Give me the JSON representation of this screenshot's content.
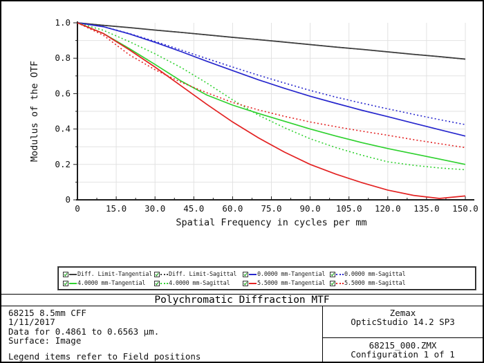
{
  "window": {
    "title": "Polychromatic Diffraction MTF"
  },
  "chart_data": {
    "type": "line",
    "title": "Polychromatic Diffraction MTF",
    "xlabel": "Spatial Frequency in cycles per mm",
    "ylabel": "Modulus of the OTF",
    "xlim": [
      0,
      150
    ],
    "ylim": [
      0,
      1.0
    ],
    "grid": true,
    "legend_position": "bottom-box",
    "x_ticks": {
      "values": [
        0,
        15,
        30,
        45,
        60,
        75,
        90,
        105,
        120,
        135,
        150
      ],
      "labels": [
        "0",
        "15.0",
        "30.0",
        "45.0",
        "60.0",
        "75.0",
        "90.0",
        "105.0",
        "120.0",
        "135.0",
        "150.0"
      ]
    },
    "y_ticks": {
      "values": [
        0,
        0.2,
        0.4,
        0.6,
        0.8,
        1.0
      ],
      "labels": [
        "0",
        "0.2",
        "0.4",
        "0.6",
        "0.8",
        "1.0"
      ]
    },
    "x": [
      0,
      10,
      20,
      30,
      40,
      50,
      60,
      70,
      80,
      90,
      100,
      110,
      120,
      130,
      140,
      150
    ],
    "series": [
      {
        "name": "Diff. Limit-Tangential",
        "color": "#3c3c3c",
        "style": "solid",
        "values": [
          1.0,
          0.986,
          0.973,
          0.959,
          0.946,
          0.932,
          0.918,
          0.905,
          0.891,
          0.877,
          0.863,
          0.85,
          0.836,
          0.822,
          0.809,
          0.795
        ]
      },
      {
        "name": "Diff. Limit-Sagittal",
        "color": "#3c3c3c",
        "style": "dotted",
        "values": [
          1.0,
          0.986,
          0.973,
          0.959,
          0.946,
          0.932,
          0.918,
          0.905,
          0.891,
          0.877,
          0.863,
          0.85,
          0.836,
          0.822,
          0.809,
          0.795
        ]
      },
      {
        "name": "0.0000 mm-Tangential",
        "color": "#2626cd",
        "style": "solid",
        "values": [
          1.0,
          0.978,
          0.938,
          0.89,
          0.838,
          0.783,
          0.73,
          0.678,
          0.63,
          0.585,
          0.545,
          0.506,
          0.47,
          0.433,
          0.396,
          0.36
        ]
      },
      {
        "name": "0.0000 mm-Sagittal",
        "color": "#2626cd",
        "style": "dotted",
        "values": [
          1.0,
          0.979,
          0.94,
          0.895,
          0.847,
          0.798,
          0.75,
          0.704,
          0.66,
          0.618,
          0.58,
          0.546,
          0.514,
          0.483,
          0.453,
          0.425
        ]
      },
      {
        "name": "4.0000 mm-Tangential",
        "color": "#2fd12f",
        "style": "solid",
        "values": [
          1.0,
          0.94,
          0.855,
          0.765,
          0.672,
          0.592,
          0.535,
          0.488,
          0.444,
          0.4,
          0.36,
          0.323,
          0.29,
          0.26,
          0.23,
          0.2
        ]
      },
      {
        "name": "4.0000 mm-Sagittal",
        "color": "#2fd12f",
        "style": "dotted",
        "values": [
          1.0,
          0.958,
          0.894,
          0.825,
          0.748,
          0.66,
          0.565,
          0.478,
          0.408,
          0.345,
          0.295,
          0.252,
          0.215,
          0.195,
          0.18,
          0.17
        ]
      },
      {
        "name": "5.5000 mm-Tangential",
        "color": "#e32222",
        "style": "solid",
        "values": [
          1.0,
          0.94,
          0.848,
          0.75,
          0.645,
          0.54,
          0.44,
          0.35,
          0.27,
          0.2,
          0.145,
          0.097,
          0.055,
          0.025,
          0.008,
          0.022
        ]
      },
      {
        "name": "5.5000 mm-Sagittal",
        "color": "#e32222",
        "style": "dotted",
        "values": [
          1.0,
          0.93,
          0.82,
          0.735,
          0.665,
          0.605,
          0.55,
          0.508,
          0.472,
          0.44,
          0.413,
          0.388,
          0.365,
          0.34,
          0.317,
          0.295
        ]
      }
    ]
  },
  "colors": {
    "grid": "#e2e2e2",
    "axis": "#1c1c1c",
    "checkbox_check": "#1d9e1d"
  },
  "footer": {
    "left_lines": [
      "68215 8.5mm CFF",
      "1/11/2017",
      "Data for 0.4861 to 0.6563 µm.",
      "Surface: Image"
    ],
    "legend_note": "Legend items refer to Field positions",
    "app_name": "Zemax",
    "app_version": "OpticStudio 14.2 SP3",
    "file_name": "68215_000.ZMX",
    "configuration": "Configuration 1 of 1"
  }
}
